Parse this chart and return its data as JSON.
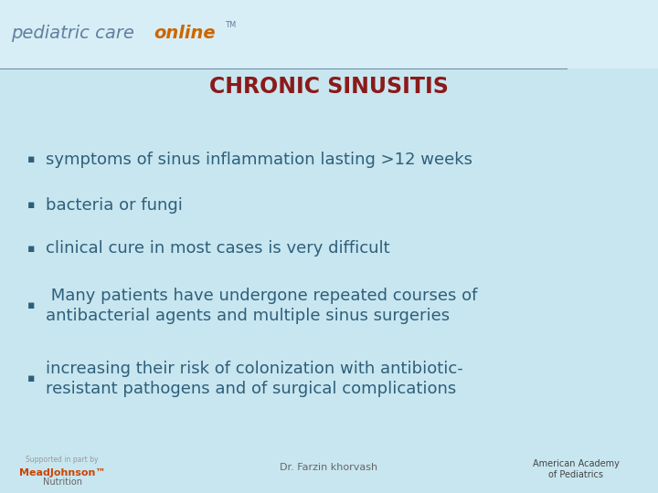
{
  "bg_color": "#c8e6f0",
  "header_bg_color": "#d8eef6",
  "title": "CHRONIC SINUSITIS",
  "title_color": "#8b1a1a",
  "title_fontsize": 17,
  "header_text": "pediatric care ",
  "header_online": "online",
  "header_tm": "TM",
  "header_color": "#6080a0",
  "header_online_color": "#cc6600",
  "header_line_color": "#7090aa",
  "bullet_color": "#2e5f7a",
  "bullet_fontsize": 13,
  "bullet_char": "▪",
  "bullets": [
    "symptoms of sinus inflammation lasting >12 weeks",
    "bacteria or fungi",
    "clinical cure in most cases is very difficult",
    " Many patients have undergone repeated courses of\nantibacterial agents and multiple sinus surgeries",
    "increasing their risk of colonization with antibiotic-\nresistant pathogens and of surgical complications"
  ],
  "footer_text": "Dr. Farzin khorvash",
  "footer_color": "#666666",
  "footer_fontsize": 8
}
